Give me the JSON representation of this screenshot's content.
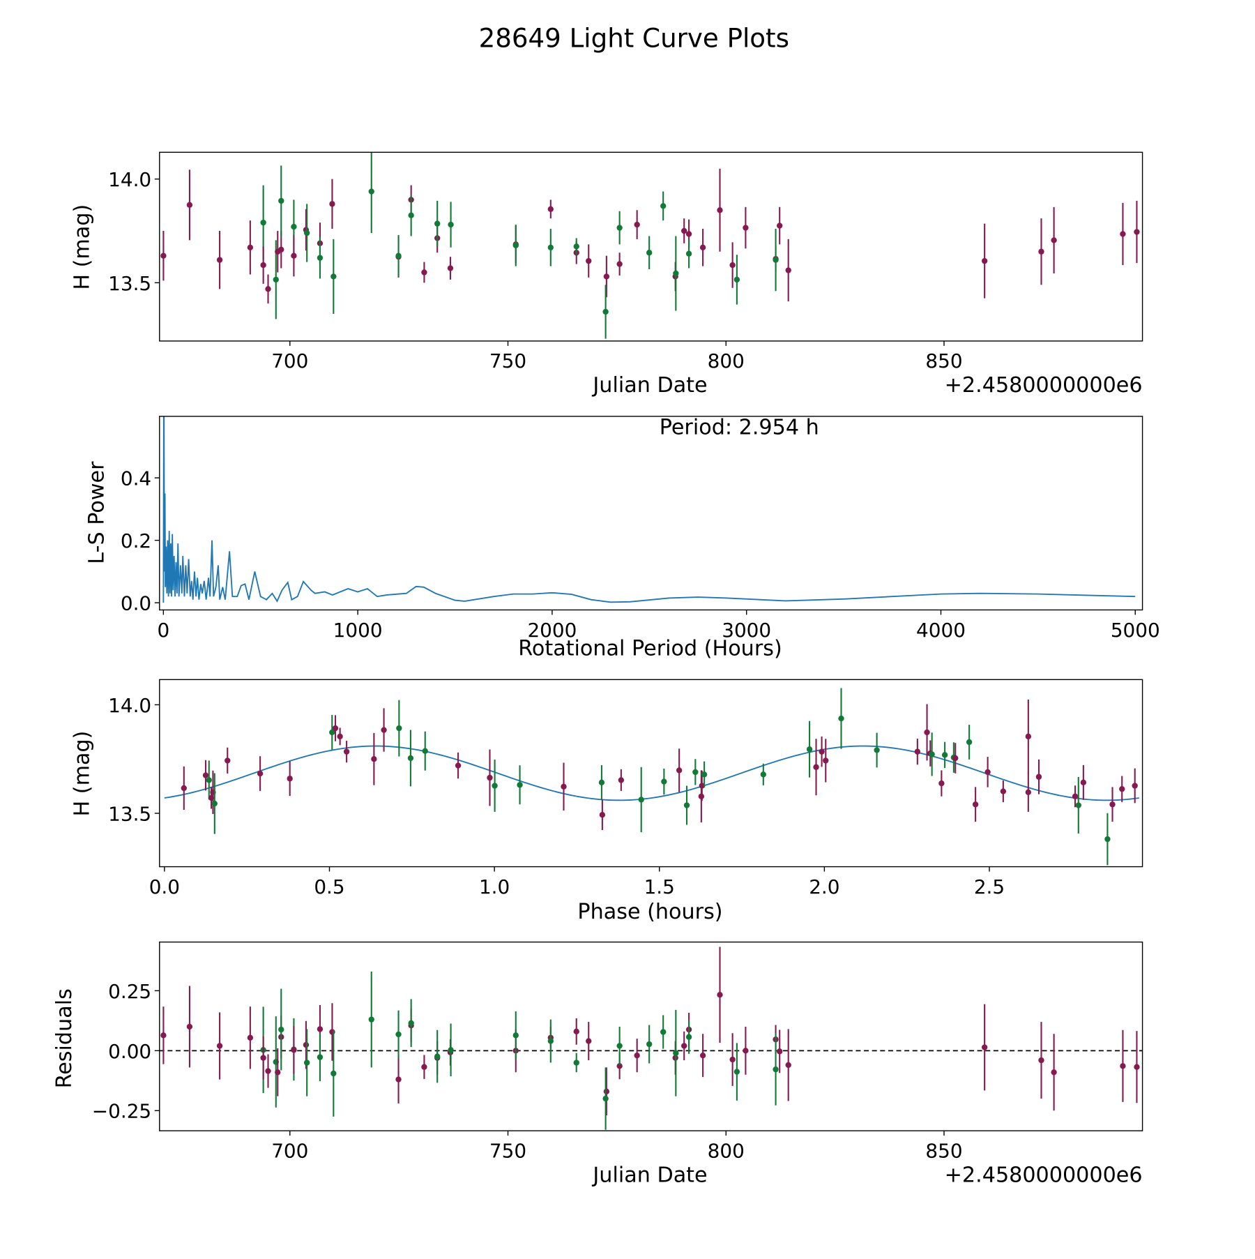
{
  "title": "28649 Light Curve Plots",
  "colors": {
    "purple": "#861a50",
    "green": "#117a37",
    "line": "#1f77b4"
  },
  "chart_data": [
    {
      "type": "scatter",
      "id": "lightcurve",
      "xlabel": "Julian Date",
      "ylabel": "H (mag)",
      "offset_text": "+2.4580000000e6",
      "xlim": [
        670.1,
        895.5
      ],
      "ylim": [
        13.219,
        14.129
      ],
      "xticks": [
        {
          "v": 700,
          "t": "700"
        },
        {
          "v": 750,
          "t": "750"
        },
        {
          "v": 800,
          "t": "800"
        },
        {
          "v": 850,
          "t": "850"
        }
      ],
      "yticks": [
        {
          "v": 13.5,
          "t": "13.5"
        },
        {
          "v": 14.0,
          "t": "14.0"
        }
      ]
    },
    {
      "type": "line",
      "id": "periodogram",
      "xlabel": "Rotational Period (Hours)",
      "ylabel": "L-S Power",
      "annotation": "Period: 2.954 h",
      "xlim": [
        -20,
        5037
      ],
      "ylim": [
        -0.023,
        0.597
      ],
      "xticks": [
        {
          "v": 0,
          "t": "0"
        },
        {
          "v": 1000,
          "t": "1000"
        },
        {
          "v": 2000,
          "t": "2000"
        },
        {
          "v": 3000,
          "t": "3000"
        },
        {
          "v": 4000,
          "t": "4000"
        },
        {
          "v": 5000,
          "t": "5000"
        }
      ],
      "yticks": [
        {
          "v": 0.0,
          "t": "0.0"
        },
        {
          "v": 0.2,
          "t": "0.2"
        },
        {
          "v": 0.4,
          "t": "0.4"
        }
      ],
      "series": [
        [
          0,
          0
        ],
        [
          2,
          0.62
        ],
        [
          3,
          0.62
        ],
        [
          5,
          0.1
        ],
        [
          8,
          0.35
        ],
        [
          10,
          0.05
        ],
        [
          14,
          0.18
        ],
        [
          18,
          0.03
        ],
        [
          22,
          0.2
        ],
        [
          26,
          0.02
        ],
        [
          30,
          0.23
        ],
        [
          34,
          0.03
        ],
        [
          38,
          0.19
        ],
        [
          42,
          0.02
        ],
        [
          46,
          0.22
        ],
        [
          50,
          0.04
        ],
        [
          55,
          0.15
        ],
        [
          60,
          0.02
        ],
        [
          65,
          0.13
        ],
        [
          70,
          0.03
        ],
        [
          75,
          0.19
        ],
        [
          80,
          0.02
        ],
        [
          88,
          0.12
        ],
        [
          95,
          0.03
        ],
        [
          100,
          0.15
        ],
        [
          108,
          0.02
        ],
        [
          115,
          0.12
        ],
        [
          122,
          0.03
        ],
        [
          130,
          0.14
        ],
        [
          138,
          0.02
        ],
        [
          145,
          0.07
        ],
        [
          152,
          0.01
        ],
        [
          160,
          0.1
        ],
        [
          168,
          0.02
        ],
        [
          175,
          0.08
        ],
        [
          183,
          0.01
        ],
        [
          192,
          0.06
        ],
        [
          200,
          0.03
        ],
        [
          210,
          0.07
        ],
        [
          220,
          0.01
        ],
        [
          232,
          0.08
        ],
        [
          240,
          0.02
        ],
        [
          250,
          0.2
        ],
        [
          258,
          0.02
        ],
        [
          270,
          0.05
        ],
        [
          282,
          0.12
        ],
        [
          290,
          0.01
        ],
        [
          305,
          0.05
        ],
        [
          318,
          0.01
        ],
        [
          340,
          0.165
        ],
        [
          355,
          0.02
        ],
        [
          380,
          0.02
        ],
        [
          400,
          0.055
        ],
        [
          420,
          0.06
        ],
        [
          440,
          0.01
        ],
        [
          470,
          0.1
        ],
        [
          500,
          0.02
        ],
        [
          530,
          0.01
        ],
        [
          560,
          0.03
        ],
        [
          585,
          0.005
        ],
        [
          610,
          0.04
        ],
        [
          640,
          0.065
        ],
        [
          660,
          0.01
        ],
        [
          690,
          0.02
        ],
        [
          720,
          0.068
        ],
        [
          760,
          0.04
        ],
        [
          780,
          0.03
        ],
        [
          830,
          0.035
        ],
        [
          870,
          0.025
        ],
        [
          950,
          0.045
        ],
        [
          1000,
          0.035
        ],
        [
          1050,
          0.045
        ],
        [
          1100,
          0.02
        ],
        [
          1150,
          0.025
        ],
        [
          1250,
          0.03
        ],
        [
          1300,
          0.052
        ],
        [
          1340,
          0.05
        ],
        [
          1400,
          0.03
        ],
        [
          1500,
          0.008
        ],
        [
          1550,
          0.005
        ],
        [
          1700,
          0.02
        ],
        [
          1800,
          0.028
        ],
        [
          1900,
          0.028
        ],
        [
          2000,
          0.032
        ],
        [
          2100,
          0.027
        ],
        [
          2200,
          0.01
        ],
        [
          2300,
          0.002
        ],
        [
          2400,
          0.003
        ],
        [
          2600,
          0.015
        ],
        [
          2750,
          0.018
        ],
        [
          2900,
          0.015
        ],
        [
          3200,
          0.006
        ],
        [
          3500,
          0.012
        ],
        [
          4000,
          0.028
        ],
        [
          4200,
          0.03
        ],
        [
          4500,
          0.028
        ],
        [
          5000,
          0.02
        ]
      ]
    },
    {
      "type": "scatter",
      "id": "phase",
      "xlabel": "Phase (hours)",
      "ylabel": "H (mag)",
      "xlim": [
        -0.015,
        2.964
      ],
      "ylim": [
        13.254,
        14.116
      ],
      "xticks": [
        {
          "v": 0,
          "t": "0.0"
        },
        {
          "v": 0.5,
          "t": "0.5"
        },
        {
          "v": 1.0,
          "t": "1.0"
        },
        {
          "v": 1.5,
          "t": "1.5"
        },
        {
          "v": 2.0,
          "t": "2.0"
        },
        {
          "v": 2.5,
          "t": "2.5"
        }
      ],
      "yticks": [
        {
          "v": 13.5,
          "t": "13.5"
        },
        {
          "v": 14.0,
          "t": "14.0"
        }
      ],
      "model": {
        "mean": 13.685,
        "amplitude": 0.125,
        "peak_phase": 0.64,
        "period": 2.954,
        "harmonics": 2
      },
      "points": [
        [
          0.059,
          13.616,
          0.1,
          "P"
        ],
        [
          0.125,
          13.675,
          0.07,
          "P"
        ],
        [
          0.135,
          13.653,
          0.09,
          "G"
        ],
        [
          0.142,
          13.571,
          0.05,
          "P"
        ],
        [
          0.147,
          13.597,
          0.1,
          "P"
        ],
        [
          0.152,
          13.545,
          0.14,
          "G"
        ],
        [
          0.191,
          13.743,
          0.06,
          "P"
        ],
        [
          0.29,
          13.683,
          0.08,
          "P"
        ],
        [
          0.38,
          13.66,
          0.08,
          "P"
        ],
        [
          0.508,
          13.873,
          0.08,
          "G"
        ],
        [
          0.518,
          13.892,
          0.06,
          "P"
        ],
        [
          0.532,
          13.854,
          0.04,
          "P"
        ],
        [
          0.552,
          13.784,
          0.05,
          "P"
        ],
        [
          0.635,
          13.75,
          0.12,
          "P"
        ],
        [
          0.665,
          13.884,
          0.1,
          "P"
        ],
        [
          0.711,
          13.892,
          0.13,
          "G"
        ],
        [
          0.746,
          13.754,
          0.13,
          "G"
        ],
        [
          0.79,
          13.787,
          0.09,
          "G"
        ],
        [
          0.89,
          13.72,
          0.06,
          "P"
        ],
        [
          0.986,
          13.664,
          0.13,
          "P"
        ],
        [
          1.001,
          13.627,
          0.12,
          "G"
        ],
        [
          1.077,
          13.631,
          0.09,
          "G"
        ],
        [
          1.21,
          13.623,
          0.11,
          "P"
        ],
        [
          1.325,
          13.642,
          0.08,
          "G"
        ],
        [
          1.327,
          13.493,
          0.07,
          "P"
        ],
        [
          1.384,
          13.653,
          0.05,
          "P"
        ],
        [
          1.445,
          13.563,
          0.15,
          "G"
        ],
        [
          1.514,
          13.646,
          0.06,
          "G"
        ],
        [
          1.56,
          13.698,
          0.1,
          "P"
        ],
        [
          1.583,
          13.537,
          0.09,
          "G"
        ],
        [
          1.609,
          13.69,
          0.06,
          "G"
        ],
        [
          1.627,
          13.578,
          0.12,
          "P"
        ],
        [
          1.629,
          13.627,
          0.07,
          "P"
        ],
        [
          1.636,
          13.679,
          0.06,
          "G"
        ],
        [
          1.815,
          13.679,
          0.05,
          "G"
        ],
        [
          1.955,
          13.795,
          0.13,
          "G"
        ],
        [
          1.975,
          13.713,
          0.13,
          "P"
        ],
        [
          1.992,
          13.784,
          0.07,
          "P"
        ],
        [
          2.004,
          13.743,
          0.1,
          "P"
        ],
        [
          2.051,
          13.937,
          0.14,
          "G"
        ],
        [
          2.159,
          13.791,
          0.08,
          "G"
        ],
        [
          2.282,
          13.784,
          0.06,
          "P"
        ],
        [
          2.311,
          13.873,
          0.13,
          "P"
        ],
        [
          2.321,
          13.776,
          0.06,
          "P"
        ],
        [
          2.326,
          13.772,
          0.1,
          "G"
        ],
        [
          2.355,
          13.638,
          0.06,
          "P"
        ],
        [
          2.365,
          13.769,
          0.06,
          "G"
        ],
        [
          2.392,
          13.757,
          0.07,
          "G"
        ],
        [
          2.397,
          13.754,
          0.07,
          "P"
        ],
        [
          2.439,
          13.828,
          0.08,
          "G"
        ],
        [
          2.458,
          13.541,
          0.08,
          "P"
        ],
        [
          2.495,
          13.69,
          0.07,
          "P"
        ],
        [
          2.542,
          13.601,
          0.05,
          "P"
        ],
        [
          2.618,
          13.854,
          0.17,
          "P"
        ],
        [
          2.618,
          13.597,
          0.09,
          "P"
        ],
        [
          2.65,
          13.668,
          0.08,
          "P"
        ],
        [
          2.76,
          13.578,
          0.05,
          "P"
        ],
        [
          2.77,
          13.537,
          0.13,
          "G"
        ],
        [
          2.785,
          13.642,
          0.08,
          "P"
        ],
        [
          2.858,
          13.381,
          0.12,
          "G"
        ],
        [
          2.873,
          13.541,
          0.08,
          "P"
        ],
        [
          2.902,
          13.612,
          0.06,
          "P"
        ],
        [
          2.941,
          13.627,
          0.08,
          "P"
        ]
      ]
    },
    {
      "type": "scatter",
      "id": "residuals",
      "xlabel": "Julian Date",
      "ylabel": "Residuals",
      "offset_text": "+2.4580000000e6",
      "xlim": [
        670.1,
        895.5
      ],
      "ylim": [
        -0.334,
        0.453
      ],
      "xticks": [
        {
          "v": 700,
          "t": "700"
        },
        {
          "v": 750,
          "t": "750"
        },
        {
          "v": 800,
          "t": "800"
        },
        {
          "v": 850,
          "t": "850"
        }
      ],
      "yticks": [
        {
          "v": -0.25,
          "t": "−0.25"
        },
        {
          "v": 0,
          "t": "0.00"
        },
        {
          "v": 0.25,
          "t": "0.25"
        }
      ]
    }
  ],
  "observations": [
    [
      671.0,
      13.63,
      0.12,
      0.064,
      "P"
    ],
    [
      677.0,
      13.875,
      0.17,
      0.1,
      "P"
    ],
    [
      683.9,
      13.61,
      0.14,
      0.02,
      "P"
    ],
    [
      690.9,
      13.67,
      0.13,
      0.054,
      "P"
    ],
    [
      693.9,
      13.79,
      0.18,
      0.003,
      "G"
    ],
    [
      693.9,
      13.585,
      0.09,
      -0.03,
      "P"
    ],
    [
      695.0,
      13.47,
      0.07,
      -0.085,
      "P"
    ],
    [
      696.8,
      13.515,
      0.19,
      -0.047,
      "G"
    ],
    [
      697.2,
      13.65,
      0.1,
      -0.09,
      "P"
    ],
    [
      698.0,
      13.66,
      0.09,
      0.057,
      "P"
    ],
    [
      698.0,
      13.895,
      0.17,
      0.088,
      "G"
    ],
    [
      700.9,
      13.77,
      0.13,
      0.005,
      "G"
    ],
    [
      700.9,
      13.63,
      0.1,
      0.003,
      "P"
    ],
    [
      703.7,
      13.755,
      0.1,
      0.024,
      "P"
    ],
    [
      703.9,
      13.74,
      0.14,
      -0.05,
      "G"
    ],
    [
      706.9,
      13.69,
      0.1,
      0.09,
      "P"
    ],
    [
      706.9,
      13.62,
      0.1,
      -0.027,
      "G"
    ],
    [
      709.7,
      13.88,
      0.12,
      0.078,
      "P"
    ],
    [
      710.0,
      13.53,
      0.18,
      -0.095,
      "G"
    ],
    [
      718.7,
      13.94,
      0.2,
      0.13,
      "G"
    ],
    [
      724.9,
      13.625,
      0.1,
      -0.12,
      "P"
    ],
    [
      724.9,
      13.63,
      0.1,
      0.068,
      "G"
    ],
    [
      727.8,
      13.9,
      0.07,
      0.105,
      "P"
    ],
    [
      727.8,
      13.825,
      0.1,
      0.115,
      "G"
    ],
    [
      730.8,
      13.55,
      0.05,
      -0.068,
      "P"
    ],
    [
      733.8,
      13.715,
      0.07,
      -0.03,
      "P"
    ],
    [
      733.8,
      13.785,
      0.11,
      -0.024,
      "G"
    ],
    [
      736.8,
      13.57,
      0.055,
      -0.007,
      "P"
    ],
    [
      736.9,
      13.78,
      0.11,
      0.003,
      "G"
    ],
    [
      751.8,
      13.685,
      0.09,
      0.0,
      "P"
    ],
    [
      751.8,
      13.68,
      0.1,
      0.064,
      "G"
    ],
    [
      759.8,
      13.855,
      0.045,
      0.054,
      "P"
    ],
    [
      759.8,
      13.67,
      0.09,
      0.04,
      "G"
    ],
    [
      765.7,
      13.645,
      0.055,
      0.08,
      "P"
    ],
    [
      765.7,
      13.675,
      0.04,
      -0.05,
      "G"
    ],
    [
      768.5,
      13.605,
      0.08,
      0.04,
      "P"
    ],
    [
      772.6,
      13.53,
      0.1,
      -0.17,
      "P"
    ],
    [
      772.4,
      13.36,
      0.13,
      -0.2,
      "G"
    ],
    [
      775.6,
      13.59,
      0.055,
      -0.064,
      "P"
    ],
    [
      775.6,
      13.765,
      0.08,
      0.02,
      "G"
    ],
    [
      779.6,
      13.78,
      0.07,
      -0.02,
      "P"
    ],
    [
      782.4,
      13.645,
      0.08,
      0.027,
      "G"
    ],
    [
      785.6,
      13.87,
      0.07,
      0.078,
      "G"
    ],
    [
      788.4,
      13.53,
      0.07,
      -0.03,
      "P"
    ],
    [
      788.5,
      13.545,
      0.18,
      -0.01,
      "G"
    ],
    [
      790.4,
      13.75,
      0.06,
      0.02,
      "P"
    ],
    [
      791.5,
      13.735,
      0.07,
      0.088,
      "P"
    ],
    [
      791.5,
      13.64,
      0.07,
      0.057,
      "G"
    ],
    [
      794.7,
      13.67,
      0.09,
      -0.02,
      "P"
    ],
    [
      798.6,
      13.85,
      0.2,
      0.233,
      "P"
    ],
    [
      801.5,
      13.585,
      0.11,
      -0.037,
      "P"
    ],
    [
      802.5,
      13.515,
      0.12,
      -0.088,
      "G"
    ],
    [
      804.5,
      13.765,
      0.1,
      0.0,
      "P"
    ],
    [
      811.4,
      13.615,
      0.06,
      0.047,
      "P"
    ],
    [
      811.4,
      13.61,
      0.15,
      -0.078,
      "G"
    ],
    [
      812.3,
      13.775,
      0.09,
      -0.003,
      "P"
    ],
    [
      814.3,
      13.56,
      0.15,
      -0.06,
      "P"
    ],
    [
      859.3,
      13.605,
      0.18,
      0.014,
      "P"
    ],
    [
      872.3,
      13.65,
      0.16,
      -0.04,
      "P"
    ],
    [
      875.2,
      13.705,
      0.16,
      -0.09,
      "P"
    ],
    [
      891.0,
      13.735,
      0.15,
      -0.064,
      "P"
    ],
    [
      894.2,
      13.745,
      0.15,
      -0.068,
      "P"
    ]
  ]
}
